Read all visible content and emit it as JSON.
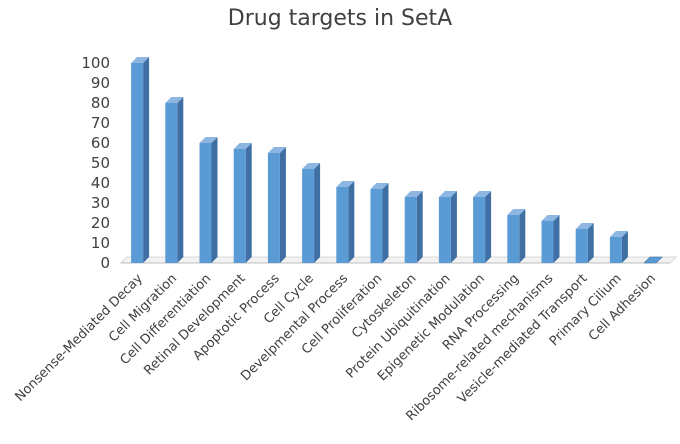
{
  "chart_data": {
    "type": "bar",
    "title": "Drug targets in SetA",
    "xlabel": "",
    "ylabel": "",
    "ylim": [
      0,
      100
    ],
    "yticks": [
      0,
      10,
      20,
      30,
      40,
      50,
      60,
      70,
      80,
      90,
      100
    ],
    "grid": false,
    "bar_style": "3d",
    "bar_color": "#5B9BD5",
    "categories": [
      "Nonsense-Mediated Decay",
      "Cell Migration",
      "Cell Differentiation",
      "Retinal Development",
      "Apoptotic Process",
      "Cell Cycle",
      "Develpmental Process",
      "Cell Proliferation",
      "Cytoskeleton",
      "Protein Ubiquitination",
      "Epigenetic  Modulation",
      "RNA Processing",
      "Ribosome-related mechanisms",
      "Vesicle-mediated Transport",
      "Primary Cilium",
      "Cell Adhesion"
    ],
    "values": [
      100,
      80,
      60,
      57,
      55,
      47,
      38,
      37,
      33,
      33,
      33,
      24,
      21,
      17,
      13,
      0
    ]
  }
}
